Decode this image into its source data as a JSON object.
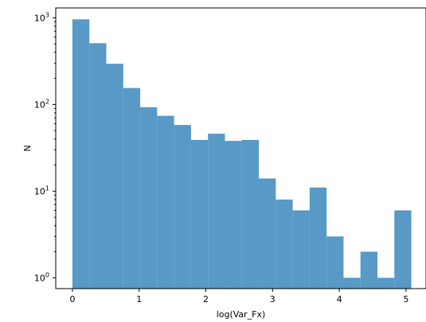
{
  "chart_data": {
    "type": "bar",
    "title": "",
    "xlabel": "log(Var_Fx)",
    "ylabel": "N",
    "yscale": "log",
    "xlim": [
      -0.25,
      5.3
    ],
    "ylim": [
      0.75,
      1300
    ],
    "bar_color": "#5899c6",
    "x_ticks": [
      {
        "value": 0,
        "label": "0"
      },
      {
        "value": 1,
        "label": "1"
      },
      {
        "value": 2,
        "label": "2"
      },
      {
        "value": 3,
        "label": "3"
      },
      {
        "value": 4,
        "label": "4"
      },
      {
        "value": 5,
        "label": "5"
      }
    ],
    "y_ticks": [
      {
        "value": 1,
        "base": "10",
        "exp": "0"
      },
      {
        "value": 10,
        "base": "10",
        "exp": "1"
      },
      {
        "value": 100,
        "base": "10",
        "exp": "2"
      },
      {
        "value": 1000,
        "base": "10",
        "exp": "3"
      }
    ],
    "bins": [
      0.0,
      0.254,
      0.508,
      0.762,
      1.016,
      1.27,
      1.524,
      1.778,
      2.032,
      2.286,
      2.54,
      2.794,
      3.048,
      3.302,
      3.556,
      3.81,
      4.064,
      4.318,
      4.572,
      4.826,
      5.08
    ],
    "counts": [
      960,
      510,
      295,
      155,
      93,
      74,
      58,
      39,
      46,
      38,
      39,
      14,
      8,
      6,
      11,
      3,
      1,
      2,
      1,
      6
    ]
  }
}
